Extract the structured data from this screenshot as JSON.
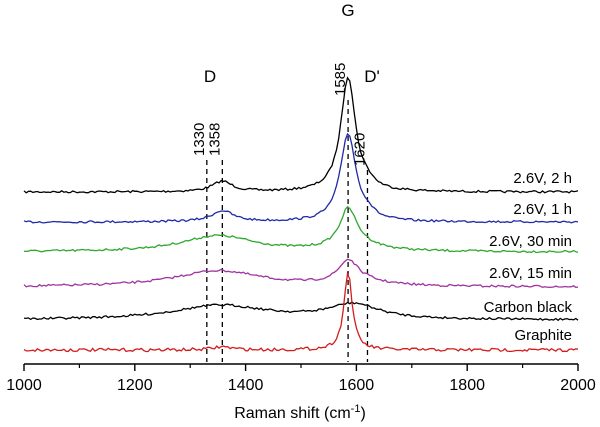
{
  "chart_data": {
    "type": "line",
    "title": "",
    "xlabel": "Raman shift (cm",
    "xlabel_sup": "-1",
    "xlabel_close": ")",
    "ylabel": "",
    "xlim": [
      1000,
      2000
    ],
    "x_ticks": [
      "1000",
      "1200",
      "1400",
      "1600",
      "1800",
      "2000"
    ],
    "grid": false,
    "legend": "inline-right",
    "band_labels": [
      {
        "text": "D",
        "x": 1345
      },
      {
        "text": "G",
        "x": 1585
      },
      {
        "text": "D'",
        "x": 1620
      }
    ],
    "peak_lines": [
      {
        "text": "1330",
        "x": 1330
      },
      {
        "text": "1358",
        "x": 1358
      },
      {
        "text": "1585",
        "x": 1585
      },
      {
        "text": "1620",
        "x": 1620
      }
    ],
    "series": [
      {
        "name": "2.6V, 2 h",
        "color": "#000000",
        "baseline": 0.0,
        "peaks": [
          {
            "c": 1358,
            "w": 22,
            "h": 0.09
          },
          {
            "c": 1585,
            "w": 16,
            "h": 1.0
          },
          {
            "c": 1620,
            "w": 15,
            "h": 0.04
          }
        ]
      },
      {
        "name": "2.6V, 1 h",
        "color": "#1f2aa8",
        "baseline": 0.0,
        "peaks": [
          {
            "c": 1358,
            "w": 24,
            "h": 0.1
          },
          {
            "c": 1585,
            "w": 17,
            "h": 0.8
          },
          {
            "c": 1620,
            "w": 15,
            "h": 0.05
          }
        ]
      },
      {
        "name": "2.6V, 30 min",
        "color": "#2fa82f",
        "baseline": 0.0,
        "peaks": [
          {
            "c": 1350,
            "w": 80,
            "h": 0.17
          },
          {
            "c": 1585,
            "w": 18,
            "h": 0.38
          },
          {
            "c": 1600,
            "w": 45,
            "h": 0.08
          }
        ]
      },
      {
        "name": "2.6V, 15 min",
        "color": "#a033a0",
        "baseline": 0.0,
        "peaks": [
          {
            "c": 1350,
            "w": 95,
            "h": 0.18
          },
          {
            "c": 1585,
            "w": 20,
            "h": 0.22
          },
          {
            "c": 1600,
            "w": 50,
            "h": 0.07
          }
        ]
      },
      {
        "name": "Carbon black",
        "color": "#000000",
        "baseline": 0.0,
        "peaks": [
          {
            "c": 1355,
            "w": 105,
            "h": 0.26
          },
          {
            "c": 1595,
            "w": 55,
            "h": 0.27
          }
        ]
      },
      {
        "name": "Graphite",
        "color": "#d41c1c",
        "baseline": 0.0,
        "peaks": [
          {
            "c": 1358,
            "w": 20,
            "h": 0.03
          },
          {
            "c": 1585,
            "w": 9,
            "h": 0.74
          }
        ]
      }
    ]
  }
}
